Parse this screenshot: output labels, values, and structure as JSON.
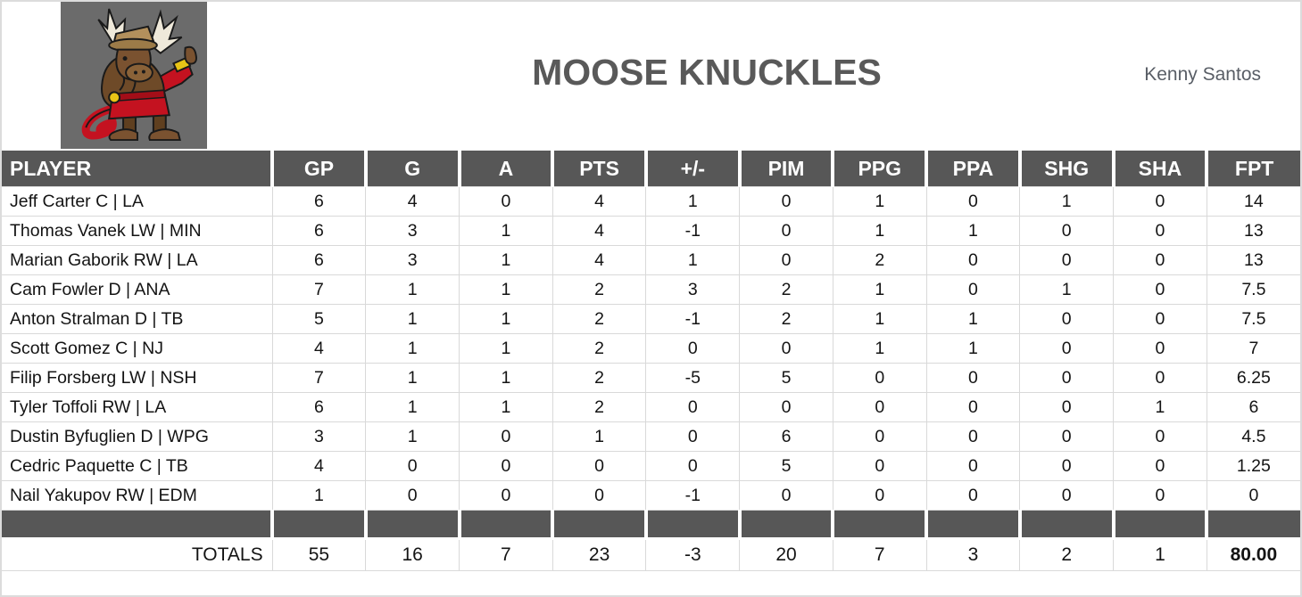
{
  "header": {
    "title": "MOOSE KNUCKLES",
    "owner": "Kenny Santos",
    "logo": "moose-mascot"
  },
  "table": {
    "columns": [
      "PLAYER",
      "GP",
      "G",
      "A",
      "PTS",
      "+/-",
      "PIM",
      "PPG",
      "PPA",
      "SHG",
      "SHA",
      "FPT"
    ],
    "players": [
      {
        "name": "Jeff Carter C | LA",
        "stats": [
          "6",
          "4",
          "0",
          "4",
          "1",
          "0",
          "1",
          "0",
          "1",
          "0",
          "14"
        ]
      },
      {
        "name": "Thomas Vanek LW | MIN",
        "stats": [
          "6",
          "3",
          "1",
          "4",
          "-1",
          "0",
          "1",
          "1",
          "0",
          "0",
          "13"
        ]
      },
      {
        "name": "Marian Gaborik RW | LA",
        "stats": [
          "6",
          "3",
          "1",
          "4",
          "1",
          "0",
          "2",
          "0",
          "0",
          "0",
          "13"
        ]
      },
      {
        "name": "Cam Fowler D | ANA",
        "stats": [
          "7",
          "1",
          "1",
          "2",
          "3",
          "2",
          "1",
          "0",
          "1",
          "0",
          "7.5"
        ]
      },
      {
        "name": "Anton Stralman D | TB",
        "stats": [
          "5",
          "1",
          "1",
          "2",
          "-1",
          "2",
          "1",
          "1",
          "0",
          "0",
          "7.5"
        ]
      },
      {
        "name": "Scott Gomez C | NJ",
        "stats": [
          "4",
          "1",
          "1",
          "2",
          "0",
          "0",
          "1",
          "1",
          "0",
          "0",
          "7"
        ]
      },
      {
        "name": "Filip Forsberg LW | NSH",
        "stats": [
          "7",
          "1",
          "1",
          "2",
          "-5",
          "5",
          "0",
          "0",
          "0",
          "0",
          "6.25"
        ]
      },
      {
        "name": "Tyler Toffoli RW | LA",
        "stats": [
          "6",
          "1",
          "1",
          "2",
          "0",
          "0",
          "0",
          "0",
          "0",
          "1",
          "6"
        ]
      },
      {
        "name": "Dustin Byfuglien D | WPG",
        "stats": [
          "3",
          "1",
          "0",
          "1",
          "0",
          "6",
          "0",
          "0",
          "0",
          "0",
          "4.5"
        ]
      },
      {
        "name": "Cedric Paquette C | TB",
        "stats": [
          "4",
          "0",
          "0",
          "0",
          "0",
          "5",
          "0",
          "0",
          "0",
          "0",
          "1.25"
        ]
      },
      {
        "name": "Nail Yakupov RW | EDM",
        "stats": [
          "1",
          "0",
          "0",
          "0",
          "-1",
          "0",
          "0",
          "0",
          "0",
          "0",
          "0"
        ]
      }
    ],
    "totals": {
      "label": "TOTALS",
      "stats": [
        "55",
        "16",
        "7",
        "23",
        "-3",
        "20",
        "7",
        "3",
        "2",
        "1",
        "80.00"
      ]
    }
  },
  "colors": {
    "header_bg": "#575757",
    "grid_line": "#d9d9d9",
    "title_text": "#595959",
    "logo_bg": "#6b6b6b"
  }
}
